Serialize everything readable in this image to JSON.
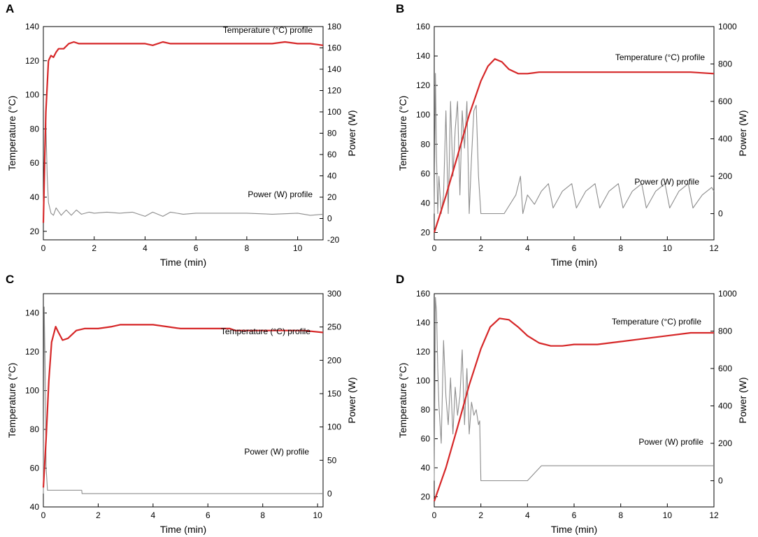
{
  "chart_data": [
    {
      "panel_label": "A",
      "type": "line",
      "xlabel": "Time (min)",
      "ylabel_left": "Temperature (°C)",
      "ylabel_right": "Power (W)",
      "xlim": [
        0,
        11
      ],
      "xticks": [
        0,
        2,
        4,
        6,
        8,
        10
      ],
      "ylim_left": [
        15,
        140
      ],
      "yticks_left": [
        20,
        40,
        60,
        80,
        100,
        120,
        140
      ],
      "ylim_right": [
        -20,
        180
      ],
      "yticks_right": [
        -20,
        0,
        20,
        40,
        60,
        80,
        100,
        120,
        140,
        160,
        180
      ],
      "temp_label": "Temperature (°C) profile",
      "power_label": "Power (W) profile",
      "series": [
        {
          "name": "Temperature (°C) profile",
          "axis": "left",
          "color": "#d62728",
          "x": [
            0,
            0.05,
            0.1,
            0.2,
            0.3,
            0.4,
            0.5,
            0.6,
            0.8,
            1.0,
            1.2,
            1.4,
            1.7,
            2.0,
            2.5,
            3,
            3.5,
            4,
            4.3,
            4.7,
            5,
            5.5,
            6,
            7,
            8,
            9,
            9.5,
            10,
            10.5,
            11
          ],
          "y": [
            25,
            60,
            90,
            120,
            123,
            122,
            125,
            127,
            127,
            130,
            131,
            130,
            130,
            130,
            130,
            130,
            130,
            130,
            129,
            131,
            130,
            130,
            130,
            130,
            130,
            130,
            131,
            130,
            130,
            129
          ]
        },
        {
          "name": "Power (W) profile",
          "axis": "right",
          "color": "#8c8c8c",
          "x": [
            0,
            0.05,
            0.1,
            0.15,
            0.2,
            0.3,
            0.4,
            0.5,
            0.7,
            0.9,
            1.1,
            1.3,
            1.5,
            1.8,
            2.0,
            2.5,
            3,
            3.5,
            4,
            4.3,
            4.7,
            5,
            5.5,
            6,
            7,
            8,
            9,
            10,
            10.5,
            11
          ],
          "y": [
            0,
            60,
            90,
            40,
            15,
            5,
            3,
            10,
            3,
            8,
            3,
            8,
            4,
            6,
            5,
            6,
            5,
            6,
            2,
            6,
            2,
            6,
            4,
            5,
            5,
            5,
            4,
            5,
            3,
            4
          ]
        }
      ]
    },
    {
      "panel_label": "B",
      "type": "line",
      "xlabel": "Time (min)",
      "ylabel_left": "Temperature (°C)",
      "ylabel_right": "Power (W)",
      "xlim": [
        0,
        12
      ],
      "xticks": [
        0,
        2,
        4,
        6,
        8,
        10,
        12
      ],
      "ylim_left": [
        15,
        160
      ],
      "yticks_left": [
        20,
        40,
        60,
        80,
        100,
        120,
        140,
        160
      ],
      "ylim_right": [
        -140,
        1000
      ],
      "yticks_right": [
        0,
        200,
        400,
        600,
        800,
        1000
      ],
      "temp_label": "Temperature (°C) profile",
      "power_label": "Power (W) profile",
      "series": [
        {
          "name": "Temperature (°C) profile",
          "axis": "left",
          "color": "#d62728",
          "x": [
            0,
            0.5,
            1,
            1.5,
            2,
            2.3,
            2.6,
            2.9,
            3.2,
            3.6,
            4,
            4.5,
            5,
            6,
            7,
            8,
            9,
            10,
            11,
            12
          ],
          "y": [
            20,
            45,
            72,
            100,
            123,
            133,
            138,
            136,
            131,
            128,
            128,
            129,
            129,
            129,
            129,
            129,
            129,
            129,
            129,
            128
          ]
        },
        {
          "name": "Power (W) profile",
          "axis": "right",
          "color": "#8c8c8c",
          "x": [
            0,
            0.05,
            0.1,
            0.15,
            0.2,
            0.3,
            0.4,
            0.5,
            0.6,
            0.7,
            0.8,
            0.9,
            1.0,
            1.1,
            1.2,
            1.3,
            1.4,
            1.5,
            1.6,
            1.7,
            1.8,
            1.9,
            2.0,
            2.5,
            3.0,
            3.5,
            3.7,
            3.8,
            4.0,
            4.3,
            4.6,
            4.9,
            5.1,
            5.5,
            5.9,
            6.1,
            6.5,
            6.9,
            7.1,
            7.5,
            7.9,
            8.1,
            8.5,
            8.9,
            9.1,
            9.5,
            9.9,
            10.1,
            10.5,
            10.9,
            11.1,
            11.5,
            11.9,
            12.0
          ],
          "y": [
            0,
            750,
            300,
            0,
            200,
            0,
            100,
            550,
            0,
            600,
            200,
            450,
            600,
            100,
            550,
            350,
            600,
            0,
            300,
            550,
            580,
            200,
            0,
            0,
            0,
            100,
            200,
            0,
            100,
            50,
            120,
            160,
            30,
            120,
            160,
            30,
            120,
            160,
            30,
            120,
            160,
            30,
            120,
            160,
            30,
            120,
            160,
            30,
            120,
            160,
            30,
            100,
            140,
            120
          ]
        }
      ]
    },
    {
      "panel_label": "C",
      "type": "line",
      "xlabel": "Time (min)",
      "ylabel_left": "Temperature (°C)",
      "ylabel_right": "Power (W)",
      "xlim": [
        0,
        10.2
      ],
      "xticks": [
        0,
        2,
        4,
        6,
        8,
        10
      ],
      "ylim_left": [
        40,
        150
      ],
      "yticks_left": [
        40,
        60,
        80,
        100,
        120,
        140
      ],
      "ylim_right": [
        -20,
        300
      ],
      "yticks_right": [
        0,
        50,
        100,
        150,
        200,
        250,
        300
      ],
      "temp_label": "Temperature (°C) profile",
      "power_label": "Power (W) profile",
      "series": [
        {
          "name": "Temperature (°C) profile",
          "axis": "left",
          "color": "#d62728",
          "x": [
            0,
            0.1,
            0.2,
            0.3,
            0.45,
            0.55,
            0.7,
            0.9,
            1.2,
            1.5,
            2,
            2.5,
            2.8,
            3.5,
            4,
            4.5,
            5,
            5.5,
            6,
            6.8,
            7,
            8,
            9,
            9.5,
            10.2
          ],
          "y": [
            50,
            75,
            105,
            125,
            133,
            130,
            126,
            127,
            131,
            132,
            132,
            133,
            134,
            134,
            134,
            133,
            132,
            132,
            132,
            132,
            131,
            131,
            131,
            131,
            130
          ]
        },
        {
          "name": "Power (W) profile",
          "axis": "right",
          "color": "#8c8c8c",
          "x": [
            0,
            0.03,
            0.06,
            0.1,
            0.15,
            0.2,
            0.5,
            1.0,
            1.4,
            1.41,
            3,
            5,
            7,
            9,
            10.2
          ],
          "y": [
            0,
            280,
            200,
            40,
            5,
            5,
            5,
            5,
            5,
            0,
            0,
            0,
            0,
            0,
            0
          ]
        }
      ]
    },
    {
      "panel_label": "D",
      "type": "line",
      "xlabel": "Time (min)",
      "ylabel_left": "Temperature (°C)",
      "ylabel_right": "Power (W)",
      "xlim": [
        0,
        12
      ],
      "xticks": [
        0,
        2,
        4,
        6,
        8,
        10,
        12
      ],
      "ylim_left": [
        13,
        160
      ],
      "yticks_left": [
        20,
        40,
        60,
        80,
        100,
        120,
        140,
        160
      ],
      "ylim_right": [
        -140,
        1000
      ],
      "yticks_right": [
        0,
        200,
        400,
        600,
        800,
        1000
      ],
      "temp_label": "Temperature (°C) profile",
      "power_label": "Power (W) profile",
      "series": [
        {
          "name": "Temperature (°C) profile",
          "axis": "left",
          "color": "#d62728",
          "x": [
            0,
            0.5,
            1,
            1.5,
            2,
            2.4,
            2.8,
            3.2,
            3.6,
            4,
            4.5,
            5,
            5.5,
            6,
            7,
            8,
            9,
            10,
            11,
            12
          ],
          "y": [
            17,
            40,
            68,
            97,
            122,
            137,
            143,
            142,
            137,
            131,
            126,
            124,
            124,
            125,
            125,
            127,
            129,
            131,
            133,
            133
          ]
        },
        {
          "name": "Power (W) profile",
          "axis": "right",
          "color": "#8c8c8c",
          "x": [
            0,
            0.05,
            0.1,
            0.15,
            0.2,
            0.3,
            0.4,
            0.5,
            0.6,
            0.7,
            0.8,
            0.9,
            1.0,
            1.1,
            1.2,
            1.3,
            1.4,
            1.5,
            1.6,
            1.7,
            1.8,
            1.9,
            1.95,
            2.0,
            2.5,
            3,
            3.5,
            4.0,
            4.3,
            4.6,
            5,
            6,
            8,
            10,
            12
          ],
          "y": [
            0,
            980,
            900,
            600,
            400,
            200,
            750,
            450,
            300,
            550,
            250,
            500,
            350,
            450,
            700,
            300,
            600,
            250,
            420,
            350,
            380,
            300,
            320,
            0,
            0,
            0,
            0,
            0,
            40,
            80,
            80,
            80,
            80,
            80,
            80
          ]
        }
      ]
    }
  ]
}
